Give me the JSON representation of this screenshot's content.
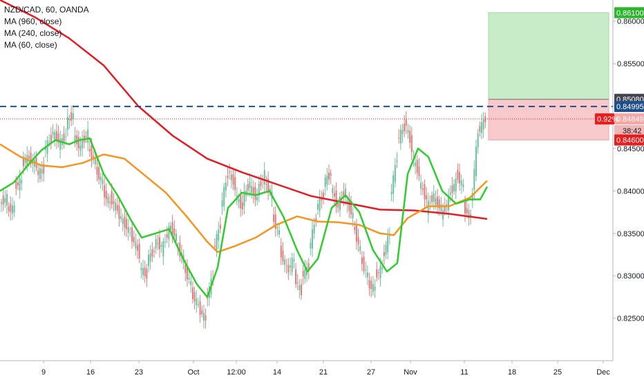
{
  "header": {
    "symbol_line": "NZD/CAD, 60, OANDA",
    "indicators": [
      "MA (960, close)",
      "MA (240, close)",
      "MA (60, close)"
    ]
  },
  "colors": {
    "background": "#ffffff",
    "axis_border": "#b2b5be",
    "bull": "#6abf9e",
    "bear": "#e07a7a",
    "ma960": "#e51b23",
    "ma240": "#f7941d",
    "ma60": "#2ecc2e",
    "dashed_level": "#1f4e8c",
    "profit_zone": "#c8ecc8",
    "loss_zone": "#f8c9cb",
    "tag_blue": "#1f4e8c",
    "tag_dark": "#434651",
    "tag_red": "#e91d1d",
    "tag_green": "#2db52d",
    "tag_pink": "#f5a6a6"
  },
  "chart_data": {
    "type": "line",
    "instrument": "NZD/CAD",
    "timeframe": "60",
    "source": "OANDA",
    "ylim": [
      0.82,
      0.8625
    ],
    "y_ticks": [
      "0.82500",
      "0.83000",
      "0.83500",
      "0.84000",
      "0.84500",
      "0.85000",
      "0.85500",
      "0.86000"
    ],
    "x_ticks": [
      "9",
      "16",
      "23",
      "Oct",
      "12:00",
      "14",
      "21",
      "27",
      "Nov",
      "11",
      "18",
      "25",
      "Dec"
    ],
    "price_path": [
      [
        0.8385,
        0.8392
      ],
      [
        0.8378,
        0.838
      ],
      [
        0.8405,
        0.8412
      ],
      [
        0.8432,
        0.844
      ],
      [
        0.8438,
        0.8431
      ],
      [
        0.842,
        0.8425
      ],
      [
        0.8448,
        0.8462
      ],
      [
        0.847,
        0.846
      ],
      [
        0.8455,
        0.8465
      ],
      [
        0.848,
        0.849
      ],
      [
        0.8465,
        0.845
      ],
      [
        0.8455,
        0.8468
      ],
      [
        0.845,
        0.8435
      ],
      [
        0.8425,
        0.841
      ],
      [
        0.84,
        0.8385
      ],
      [
        0.8392,
        0.8378
      ],
      [
        0.8375,
        0.836
      ],
      [
        0.8362,
        0.8345
      ],
      [
        0.8345,
        0.8325
      ],
      [
        0.831,
        0.83
      ],
      [
        0.8318,
        0.833
      ],
      [
        0.834,
        0.8335
      ],
      [
        0.833,
        0.8355
      ],
      [
        0.836,
        0.8345
      ],
      [
        0.8335,
        0.832
      ],
      [
        0.831,
        0.829
      ],
      [
        0.828,
        0.8265
      ],
      [
        0.8262,
        0.8248
      ],
      [
        0.827,
        0.83
      ],
      [
        0.833,
        0.836
      ],
      [
        0.838,
        0.842
      ],
      [
        0.8425,
        0.8405
      ],
      [
        0.8395,
        0.838
      ],
      [
        0.839,
        0.841
      ],
      [
        0.8405,
        0.839
      ],
      [
        0.84,
        0.842
      ],
      [
        0.841,
        0.8395
      ],
      [
        0.837,
        0.835
      ],
      [
        0.833,
        0.831
      ],
      [
        0.8305,
        0.832
      ],
      [
        0.83,
        0.828
      ],
      [
        0.83,
        0.831
      ],
      [
        0.833,
        0.837
      ],
      [
        0.838,
        0.8395
      ],
      [
        0.841,
        0.842
      ],
      [
        0.8405,
        0.838
      ],
      [
        0.8385,
        0.84
      ],
      [
        0.839,
        0.837
      ],
      [
        0.836,
        0.833
      ],
      [
        0.832,
        0.83
      ],
      [
        0.829,
        0.8285
      ],
      [
        0.83,
        0.831
      ],
      [
        0.832,
        0.835
      ],
      [
        0.839,
        0.844
      ],
      [
        0.846,
        0.8475
      ],
      [
        0.8485,
        0.845
      ],
      [
        0.844,
        0.842
      ],
      [
        0.841,
        0.839
      ],
      [
        0.838,
        0.8395
      ],
      [
        0.839,
        0.838
      ],
      [
        0.837,
        0.839
      ],
      [
        0.8395,
        0.841
      ],
      [
        0.842,
        0.8405
      ],
      [
        0.838,
        0.837
      ],
      [
        0.838,
        0.847
      ],
      [
        0.847,
        0.8485
      ]
    ],
    "series": [
      {
        "name": "MA (960, close)",
        "color": "#e51b23",
        "values": [
          [
            0,
            0.8625
          ],
          [
            50,
            0.8605
          ],
          [
            100,
            0.858
          ],
          [
            150,
            0.8548
          ],
          [
            200,
            0.85
          ],
          [
            250,
            0.8465
          ],
          [
            300,
            0.8438
          ],
          [
            350,
            0.8422
          ],
          [
            400,
            0.8408
          ],
          [
            450,
            0.8394
          ],
          [
            500,
            0.8386
          ],
          [
            550,
            0.8378
          ],
          [
            600,
            0.8377
          ],
          [
            650,
            0.8373
          ],
          [
            705,
            0.8367
          ]
        ]
      },
      {
        "name": "MA (240, close)",
        "color": "#f7941d",
        "values": [
          [
            0,
            0.8455
          ],
          [
            30,
            0.844
          ],
          [
            60,
            0.843
          ],
          [
            90,
            0.8428
          ],
          [
            120,
            0.8433
          ],
          [
            150,
            0.8443
          ],
          [
            180,
            0.8438
          ],
          [
            210,
            0.8418
          ],
          [
            240,
            0.8398
          ],
          [
            270,
            0.837
          ],
          [
            300,
            0.834
          ],
          [
            315,
            0.8328
          ],
          [
            340,
            0.8335
          ],
          [
            370,
            0.8345
          ],
          [
            400,
            0.836
          ],
          [
            430,
            0.837
          ],
          [
            460,
            0.8364
          ],
          [
            490,
            0.8363
          ],
          [
            520,
            0.836
          ],
          [
            550,
            0.835
          ],
          [
            570,
            0.8348
          ],
          [
            590,
            0.8368
          ],
          [
            620,
            0.8382
          ],
          [
            650,
            0.8382
          ],
          [
            680,
            0.8392
          ],
          [
            705,
            0.8412
          ]
        ]
      },
      {
        "name": "MA (60, close)",
        "color": "#2ecc2e",
        "values": [
          [
            0,
            0.84
          ],
          [
            20,
            0.841
          ],
          [
            40,
            0.843
          ],
          [
            60,
            0.8448
          ],
          [
            80,
            0.846
          ],
          [
            100,
            0.8455
          ],
          [
            115,
            0.846
          ],
          [
            130,
            0.8462
          ],
          [
            150,
            0.842
          ],
          [
            170,
            0.8395
          ],
          [
            190,
            0.8365
          ],
          [
            205,
            0.8345
          ],
          [
            225,
            0.835
          ],
          [
            245,
            0.8355
          ],
          [
            265,
            0.832
          ],
          [
            285,
            0.829
          ],
          [
            300,
            0.8275
          ],
          [
            315,
            0.831
          ],
          [
            330,
            0.838
          ],
          [
            350,
            0.8398
          ],
          [
            370,
            0.8395
          ],
          [
            390,
            0.84
          ],
          [
            410,
            0.837
          ],
          [
            430,
            0.833
          ],
          [
            445,
            0.8305
          ],
          [
            460,
            0.832
          ],
          [
            480,
            0.838
          ],
          [
            500,
            0.8395
          ],
          [
            520,
            0.8375
          ],
          [
            540,
            0.833
          ],
          [
            560,
            0.8305
          ],
          [
            575,
            0.8315
          ],
          [
            590,
            0.842
          ],
          [
            605,
            0.845
          ],
          [
            620,
            0.844
          ],
          [
            640,
            0.84
          ],
          [
            660,
            0.8385
          ],
          [
            680,
            0.839
          ],
          [
            695,
            0.839
          ],
          [
            705,
            0.8405
          ]
        ]
      }
    ],
    "dashed_level": 0.84995,
    "position": {
      "target": 0.861,
      "entry": 0.8508,
      "stop": 0.846
    },
    "last_price": 0.84849,
    "axis_tags": {
      "target": "0.86100",
      "entry": "0.85080",
      "dashed": "0.84995",
      "last": "0.84849",
      "percent": "0.92%",
      "countdown": "38:42",
      "stop": "0.84600"
    }
  }
}
